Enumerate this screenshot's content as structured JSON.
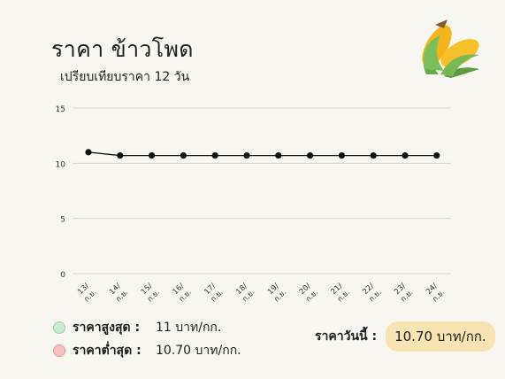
{
  "title": "ราคา ข้าวโพด",
  "subtitle": "เปรียบเทียบราคา 12 วัน",
  "icons": {
    "header": "corn-icon"
  },
  "chart_data": {
    "type": "line",
    "categories": [
      "13/ ก.ย.",
      "14/ ก.ย.",
      "15/ ก.ย.",
      "16/ ก.ย.",
      "17/ ก.ย.",
      "18/ ก.ย.",
      "19/ ก.ย.",
      "20/ ก.ย.",
      "21/ ก.ย.",
      "22/ ก.ย.",
      "23/ ก.ย.",
      "24/ ก.ย."
    ],
    "values": [
      11,
      10.7,
      10.7,
      10.7,
      10.7,
      10.7,
      10.7,
      10.7,
      10.7,
      10.7,
      10.7,
      10.7
    ],
    "yticks": [
      0,
      5,
      10,
      15
    ],
    "ylim": [
      0,
      15
    ],
    "grid": true,
    "line_color": "#111111",
    "grid_color": "#d9d6cf"
  },
  "legend": {
    "high": {
      "label": "ราคาสูงสุด :",
      "value": "11 บาท/กก.",
      "color": "#c9ecd0"
    },
    "low": {
      "label": "ราคาต่ำสุด :",
      "value": "10.70 บาท/กก.",
      "color": "#f6c1c0"
    }
  },
  "today": {
    "label": "ราคาวันนี้ :",
    "value": "10.70 บาท/กก.",
    "color": "#f8e3b3"
  }
}
